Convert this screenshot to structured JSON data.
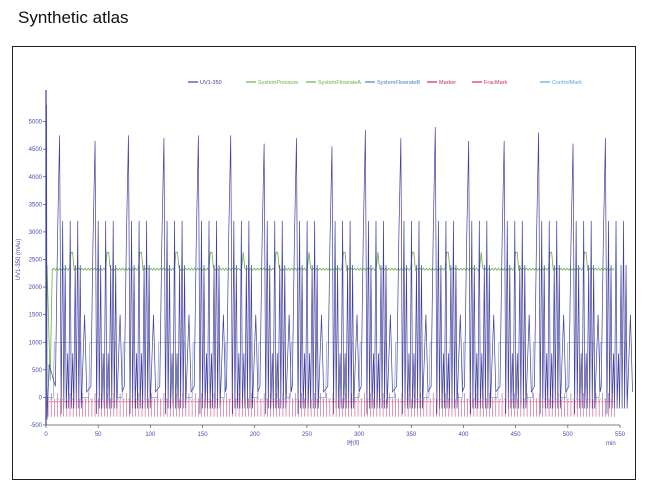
{
  "page": {
    "title": "Synthetic atlas"
  },
  "chart_data": {
    "type": "line",
    "title": "",
    "xlabel": "时间",
    "x_unit": "min",
    "ylabel": "UV1-350 (mAu)",
    "xlim": [
      0,
      550
    ],
    "ylim": [
      -500,
      5500
    ],
    "x_ticks": [
      0,
      50,
      100,
      150,
      200,
      250,
      300,
      350,
      400,
      450,
      500,
      550
    ],
    "y_ticks": [
      -500,
      0,
      500,
      1000,
      1500,
      2000,
      2500,
      3000,
      3500,
      4000,
      4500,
      5000
    ],
    "grid": false,
    "legend_position": "top",
    "legend": [
      {
        "name": "UV1-350",
        "color": "#4040a0"
      },
      {
        "name": "SystemPressure",
        "color": "#6cb04a"
      },
      {
        "name": "SystemFlowrateA",
        "color": "#6cb04a"
      },
      {
        "name": "SystemFlowrateB",
        "color": "#4a80c8"
      },
      {
        "name": "Marker",
        "color": "#c0306a"
      },
      {
        "name": "FracMark",
        "color": "#d03058"
      },
      {
        "name": "ControlMark",
        "color": "#5aa8d8"
      }
    ],
    "series": [
      {
        "name": "UV1-350",
        "peak_times": [
          13,
          47,
          79,
          113,
          146,
          177,
          209,
          240,
          274,
          306,
          340,
          373,
          405,
          439,
          472,
          505,
          536
        ],
        "peak_heights": [
          4750,
          4650,
          4750,
          4700,
          4750,
          4750,
          4600,
          4700,
          4550,
          4850,
          4700,
          4900,
          4650,
          4650,
          4800,
          4600,
          4700
        ],
        "baseline": 0
      },
      {
        "name": "SystemPressure",
        "level": 2330
      },
      {
        "name": "SystemFlowrateB",
        "level": 1000
      },
      {
        "name": "Marker",
        "level": -100
      }
    ]
  }
}
